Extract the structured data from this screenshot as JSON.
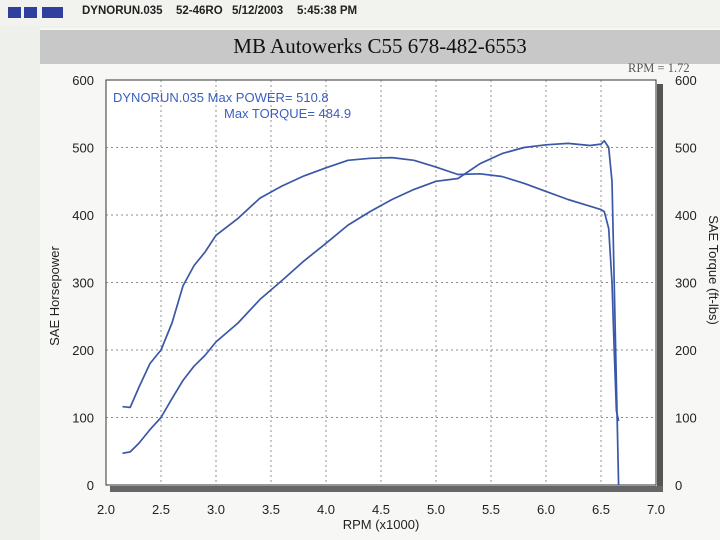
{
  "header": {
    "file": "DYNORUN.035",
    "code": "52-46RO",
    "date": "5/12/2003",
    "time": "5:45:38 PM"
  },
  "banner_title": "MB Autowerks C55  678-482-6553",
  "rpm_note": "RPM = 1.72",
  "colors": {
    "accent": "#2e3f9e",
    "curve": "#3a57a8",
    "text_blue": "#3a5fc0"
  },
  "chart_data": {
    "type": "line",
    "title": "",
    "xlabel": "RPM (x1000)",
    "ylabel": "SAE Horsepower",
    "ylabel_right": "SAE Torque (ft-lbs)",
    "xlim": [
      2.0,
      7.0
    ],
    "ylim": [
      0,
      600
    ],
    "ylim_right": [
      0,
      600
    ],
    "x_ticks": [
      "2.0",
      "2.5",
      "3.0",
      "3.5",
      "4.0",
      "4.5",
      "5.0",
      "5.5",
      "6.0",
      "6.5",
      "7.0"
    ],
    "y_ticks": [
      "0",
      "100",
      "200",
      "300",
      "400",
      "500",
      "600"
    ],
    "y_ticks_right": [
      "0",
      "100",
      "200",
      "300",
      "400",
      "500",
      "600"
    ],
    "grid": "dashed",
    "annotation": {
      "line1": "DYNORUN.035  Max POWER= 510.8",
      "line2": "Max TORQUE= 484.9"
    },
    "series": [
      {
        "id": "power",
        "points": [
          [
            2.15,
            47
          ],
          [
            2.22,
            49
          ],
          [
            2.3,
            62
          ],
          [
            2.4,
            82
          ],
          [
            2.5,
            100
          ],
          [
            2.6,
            128
          ],
          [
            2.7,
            155
          ],
          [
            2.8,
            176
          ],
          [
            2.9,
            192
          ],
          [
            3.0,
            212
          ],
          [
            3.2,
            240
          ],
          [
            3.4,
            275
          ],
          [
            3.6,
            303
          ],
          [
            3.8,
            332
          ],
          [
            4.0,
            358
          ],
          [
            4.2,
            385
          ],
          [
            4.4,
            405
          ],
          [
            4.6,
            423
          ],
          [
            4.8,
            438
          ],
          [
            5.0,
            450
          ],
          [
            5.2,
            454
          ],
          [
            5.4,
            476
          ],
          [
            5.6,
            491
          ],
          [
            5.8,
            500
          ],
          [
            6.0,
            504
          ],
          [
            6.2,
            506
          ],
          [
            6.4,
            503
          ],
          [
            6.5,
            505
          ],
          [
            6.53,
            510
          ],
          [
            6.57,
            500
          ],
          [
            6.6,
            450
          ],
          [
            6.62,
            300
          ],
          [
            6.64,
            150
          ],
          [
            6.66,
            0
          ]
        ]
      },
      {
        "id": "torque",
        "points": [
          [
            2.15,
            116
          ],
          [
            2.22,
            115
          ],
          [
            2.3,
            145
          ],
          [
            2.4,
            180
          ],
          [
            2.5,
            200
          ],
          [
            2.6,
            240
          ],
          [
            2.7,
            295
          ],
          [
            2.8,
            325
          ],
          [
            2.9,
            345
          ],
          [
            3.0,
            370
          ],
          [
            3.2,
            395
          ],
          [
            3.4,
            425
          ],
          [
            3.6,
            443
          ],
          [
            3.8,
            458
          ],
          [
            4.0,
            470
          ],
          [
            4.2,
            481
          ],
          [
            4.4,
            484
          ],
          [
            4.6,
            485
          ],
          [
            4.8,
            481
          ],
          [
            5.0,
            471
          ],
          [
            5.2,
            460
          ],
          [
            5.4,
            461
          ],
          [
            5.6,
            457
          ],
          [
            5.8,
            447
          ],
          [
            6.0,
            435
          ],
          [
            6.2,
            423
          ],
          [
            6.4,
            413
          ],
          [
            6.5,
            408
          ],
          [
            6.53,
            405
          ],
          [
            6.57,
            380
          ],
          [
            6.6,
            300
          ],
          [
            6.62,
            200
          ],
          [
            6.64,
            110
          ],
          [
            6.66,
            95
          ]
        ]
      }
    ]
  }
}
